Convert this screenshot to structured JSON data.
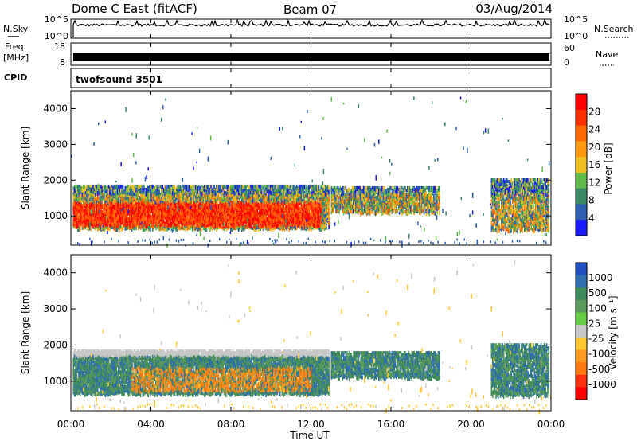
{
  "header": {
    "radar": "Dome C East (fitACF)",
    "beam": "Beam 07",
    "date": "03/Aug/2014"
  },
  "strips": {
    "nsky_label": "N.Sky",
    "nsky_ticks": [
      "10^5",
      "10^0"
    ],
    "nsearch_label": "N.Search",
    "nsearch_ticks": [
      "10^5",
      "10^0"
    ],
    "freq_label_top": "Freq.",
    "freq_label_bottom": "[MHz]",
    "freq_ticks": [
      "18",
      "8"
    ],
    "nave_label": "Nave",
    "nave_ticks": [
      "60",
      "0"
    ],
    "cpid_label": "CPID",
    "cpid_value": "twofsound 3501"
  },
  "colors": {
    "power": [
      "#1a1aff",
      "#2f5fb0",
      "#3a8a66",
      "#5fba4a",
      "#f0c020",
      "#ff9a10",
      "#ff6a00",
      "#ff3000",
      "#ff0000"
    ],
    "velocity": [
      "#2050c0",
      "#2f6fb0",
      "#3d8a5a",
      "#5a9a5a",
      "#66cc44",
      "#c8c8c8",
      "#ffc830",
      "#ff9a20",
      "#ff7a10",
      "#ff3010",
      "#ff0000"
    ]
  },
  "chart_data": [
    {
      "type": "heatmap",
      "panel": "power",
      "ylabel": "Slant Range [km]",
      "x_ticks": [
        "00:00",
        "04:00",
        "08:00",
        "12:00",
        "16:00",
        "20:00",
        "00:00"
      ],
      "y_ticks": [
        1000,
        2000,
        3000,
        4000
      ],
      "y_range": [
        180,
        4500
      ],
      "colorbar_label": "Power [dB]",
      "colorbar_ticks": [
        4,
        8,
        12,
        16,
        20,
        24,
        28
      ],
      "colorbar_range": [
        0,
        32
      ]
    },
    {
      "type": "heatmap",
      "panel": "velocity",
      "ylabel": "Slant Range [km]",
      "xlabel": "Time UT",
      "x_ticks": [
        "00:00",
        "04:00",
        "08:00",
        "12:00",
        "16:00",
        "20:00",
        "00:00"
      ],
      "y_ticks": [
        1000,
        2000,
        3000,
        4000
      ],
      "y_range": [
        180,
        4500
      ],
      "colorbar_label": "Velocity [m s⁻¹]",
      "colorbar_ticks": [
        1000,
        500,
        100,
        25,
        -25,
        -100,
        -500,
        -1000
      ]
    }
  ]
}
